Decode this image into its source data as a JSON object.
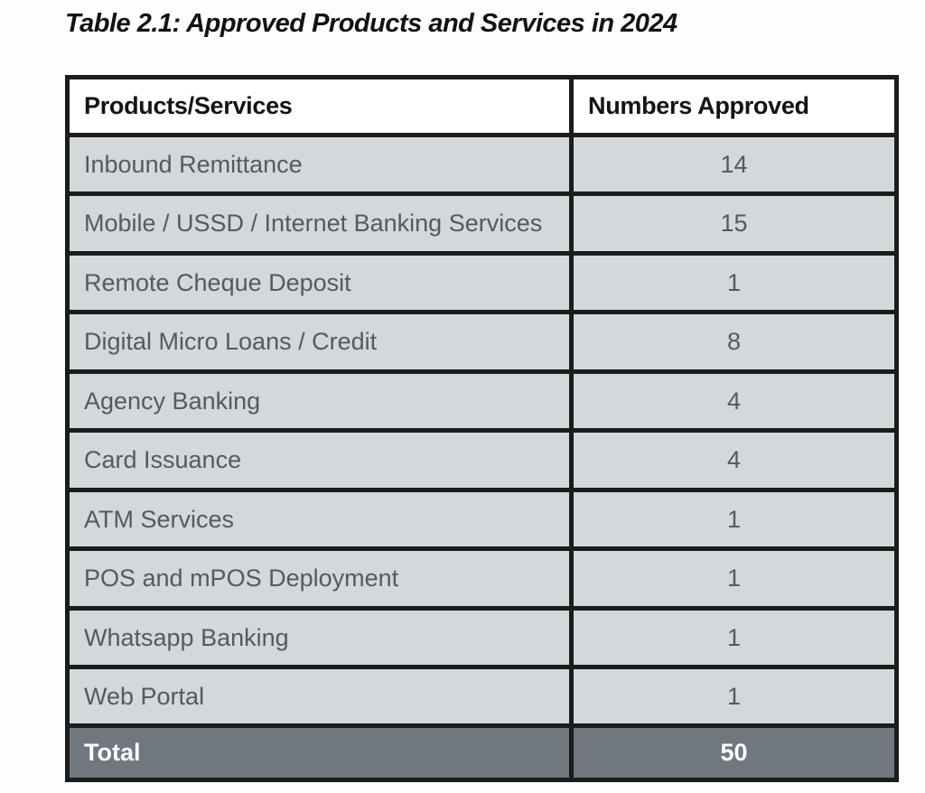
{
  "title": "Table 2.1: Approved Products and Services in 2024",
  "table": {
    "columns": [
      "Products/Services",
      "Numbers Approved"
    ],
    "rows": [
      {
        "product": "Inbound Remittance",
        "approved": "14"
      },
      {
        "product": "Mobile / USSD / Internet Banking Services",
        "approved": "15"
      },
      {
        "product": "Remote Cheque Deposit",
        "approved": "1"
      },
      {
        "product": "Digital Micro Loans / Credit",
        "approved": "8"
      },
      {
        "product": "Agency Banking",
        "approved": "4"
      },
      {
        "product": "Card Issuance",
        "approved": "4"
      },
      {
        "product": "ATM Services",
        "approved": "1"
      },
      {
        "product": "POS and mPOS Deployment",
        "approved": "1"
      },
      {
        "product": "Whatsapp Banking",
        "approved": "1"
      },
      {
        "product": "Web Portal",
        "approved": "1"
      }
    ],
    "total": {
      "label": "Total",
      "value": "50"
    }
  },
  "colors": {
    "row_background": "#d3d8db",
    "total_background": "#70777f",
    "border": "#1b1c1e",
    "header_text": "#131416",
    "row_text": "#565a60",
    "total_text": "#ffffff"
  }
}
